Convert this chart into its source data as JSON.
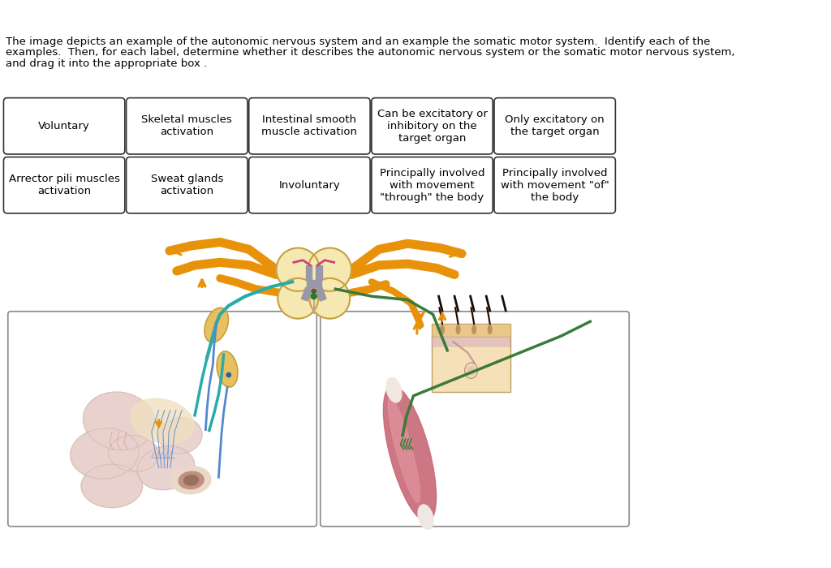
{
  "bg_color": "#ffffff",
  "description_line1": "The image depicts an example of the autonomic nervous system and an example the somatic motor system.  Identify each of the",
  "description_line2": "examples.  Then, for each label, determine whether it describes the autonomic nervous system or the somatic motor nervous system,",
  "description_line3": "and drag it into the appropriate box .",
  "row1_boxes": [
    "Voluntary",
    "Skeletal muscles\nactivation",
    "Intestinal smooth\nmuscle activation",
    "Can be excitatory or\ninhibitory on the\ntarget organ",
    "Only excitatory on\nthe target organ"
  ],
  "row2_boxes": [
    "Arrector pili muscles\nactivation",
    "Sweat glands\nactivation",
    "Involuntary",
    "Principally involved\nwith movement\n\"through\" the body",
    "Principally involved\nwith movement \"of\"\nthe body"
  ],
  "box_border_color": "#333333",
  "box_fill_color": "#ffffff",
  "text_color": "#000000",
  "font_size": 9.5,
  "nerve_orange": "#E8920A",
  "nerve_teal": "#2AABA8",
  "nerve_green": "#3A7A3A",
  "nerve_blue": "#5588CC",
  "nerve_red": "#CC4477",
  "spinal_cream": "#F5E8B0",
  "spinal_gold": "#C8A040",
  "gray_matter": "#9898A8",
  "ganglia_gold": "#E8C060"
}
